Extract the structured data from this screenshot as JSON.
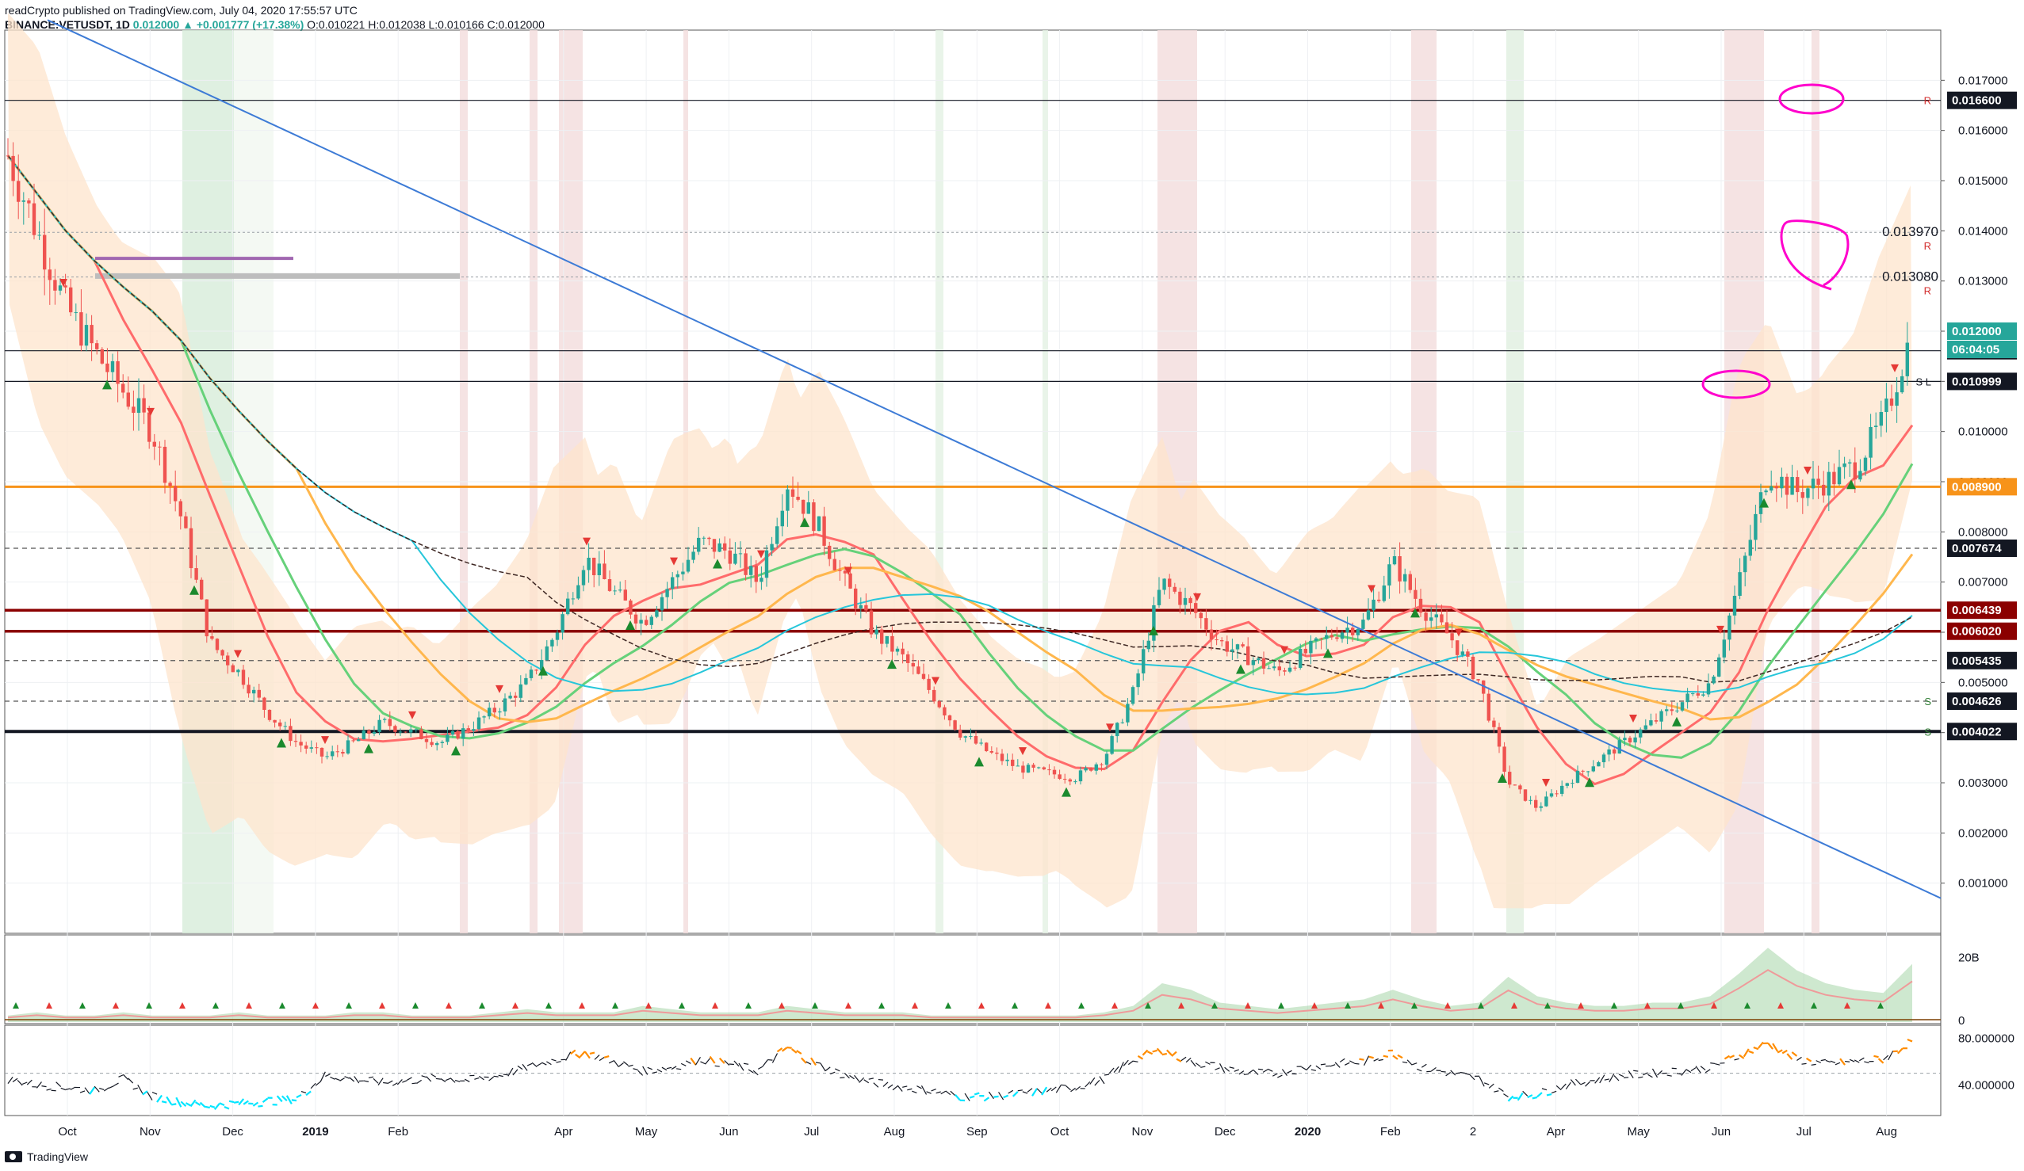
{
  "header": {
    "line1": "readCrypto published on TradingView.com, July 04, 2020 17:55:57 UTC",
    "symbol": "BINANCE:VETUSDT, 1D",
    "change": "0.012000 ▲ +0.001777 (+17.38%)",
    "ohlc": "O:0.010221 H:0.012038 L:0.010166 C:0.012000"
  },
  "footer": {
    "brand": "TradingView"
  },
  "colors": {
    "up_candle": "#26a69a",
    "down_candle": "#ef5350",
    "trendline": "#3d7bd6",
    "orange_line": "#f7931a",
    "dark_red_line": "#8b0000",
    "price_tag": "#26a69a",
    "annotation": "#ff00cc",
    "rsi_overbought": "#ff8c00",
    "rsi_oversold": "#00e5ff"
  },
  "chart_data": [
    {
      "type": "line",
      "title": "",
      "ylim": [
        0.0,
        0.018
      ],
      "y_ticks": [
        "0.017000",
        "0.016000",
        "0.015000",
        "0.014000",
        "0.013000",
        "0.012000",
        "0.011000",
        "0.010000",
        "0.009000",
        "0.008000",
        "0.007000",
        "0.006000",
        "0.005000",
        "0.004000",
        "0.003000",
        "0.002000",
        "0.001000"
      ],
      "y_tick_values": [
        0.017,
        0.016,
        0.015,
        0.014,
        0.013,
        0.012,
        0.011,
        0.01,
        0.009,
        0.008,
        0.007,
        0.006,
        0.005,
        0.004,
        0.003,
        0.002,
        0.001
      ],
      "x_ticks": [
        "Oct",
        "Nov",
        "Dec",
        "2019",
        "Feb",
        "Apr",
        "May",
        "Jun",
        "Jul",
        "Aug",
        "Sep",
        "Oct",
        "Nov",
        "Dec",
        "2020",
        "Feb",
        "2",
        "Apr",
        "May",
        "Jun",
        "Jul",
        "Aug"
      ],
      "x_tick_index": [
        0,
        1,
        2,
        3,
        4,
        6,
        7,
        8,
        9,
        10,
        11,
        12,
        13,
        14,
        15,
        16,
        17,
        18,
        19,
        20,
        21,
        22
      ],
      "x_bold": [
        "2019",
        "2020"
      ],
      "series": [
        {
          "price_path": [
            0.0155,
            0.014,
            0.0125,
            0.0116,
            0.0108,
            0.01,
            0.0083,
            0.0058,
            0.0052,
            0.0044,
            0.0038,
            0.0035,
            0.0038,
            0.0042,
            0.004,
            0.0038,
            0.0041,
            0.0045,
            0.005,
            0.006,
            0.0075,
            0.0068,
            0.0062,
            0.007,
            0.0078,
            0.0076,
            0.007,
            0.009,
            0.0082,
            0.007,
            0.006,
            0.0055,
            0.0048,
            0.004,
            0.0036,
            0.0033,
            0.0032,
            0.0031,
            0.0035,
            0.0048,
            0.007,
            0.0065,
            0.0058,
            0.0055,
            0.0052,
            0.0056,
            0.006,
            0.0062,
            0.0074,
            0.0065,
            0.0059,
            0.005,
            0.003,
            0.0025,
            0.003,
            0.0034,
            0.0038,
            0.0042,
            0.0046,
            0.005,
            0.007,
            0.0092,
            0.0088,
            0.009,
            0.0093,
            0.0102,
            0.012
          ]
        }
      ],
      "horizontal_levels": [
        {
          "value": 0.0166,
          "label": "0.016600",
          "marker": "R",
          "style": "solid-black"
        },
        {
          "value": 0.01397,
          "label": "0.013970",
          "marker": "R",
          "style": "dotted"
        },
        {
          "value": 0.01308,
          "label": "0.013080",
          "marker": "R",
          "style": "dotted"
        },
        {
          "value": 0.01161,
          "label": "0.011610",
          "marker": "",
          "style": "solid-black"
        },
        {
          "value": 0.010999,
          "label": "0.010999",
          "marker": "S L",
          "style": "solid-black"
        },
        {
          "value": 0.0089,
          "label": "0.008900",
          "marker": "",
          "style": "orange"
        },
        {
          "value": 0.007674,
          "label": "0.007674",
          "marker": "",
          "style": "dashed"
        },
        {
          "value": 0.006439,
          "label": "0.006439",
          "marker": "",
          "style": "dark-red"
        },
        {
          "value": 0.00602,
          "label": "0.006020",
          "marker": "",
          "style": "dark-red"
        },
        {
          "value": 0.005435,
          "label": "0.005435",
          "marker": "",
          "style": "dashed"
        },
        {
          "value": 0.004626,
          "label": "0.004626",
          "marker": "S",
          "style": "dashed"
        },
        {
          "value": 0.004022,
          "label": "0.004022",
          "marker": "S",
          "style": "thick-black"
        }
      ],
      "last_price": {
        "value": 0.012,
        "label": "0.012000",
        "countdown": "06:04:05"
      }
    },
    {
      "type": "area",
      "name": "volume",
      "y_ticks": [
        "20B",
        "0"
      ],
      "values": [
        0.2,
        0.3,
        0.2,
        0.2,
        0.3,
        0.2,
        0.2,
        0.2,
        0.3,
        0.2,
        0.2,
        0.2,
        0.3,
        0.3,
        0.2,
        0.2,
        0.2,
        0.3,
        0.4,
        0.3,
        0.3,
        0.3,
        0.5,
        0.4,
        0.3,
        0.3,
        0.3,
        0.5,
        0.4,
        0.3,
        0.3,
        0.3,
        0.2,
        0.2,
        0.2,
        0.2,
        0.2,
        0.2,
        0.3,
        0.5,
        1.2,
        1.0,
        0.6,
        0.5,
        0.4,
        0.5,
        0.6,
        0.7,
        1.0,
        0.7,
        0.5,
        0.6,
        1.4,
        0.8,
        0.6,
        0.5,
        0.5,
        0.6,
        0.6,
        0.8,
        1.5,
        2.3,
        1.6,
        1.2,
        1.0,
        0.9,
        1.8
      ]
    },
    {
      "type": "line",
      "name": "rsi",
      "y_ticks": [
        "80.000000",
        "40.000000"
      ],
      "values": [
        45,
        40,
        38,
        35,
        45,
        30,
        25,
        22,
        24,
        26,
        28,
        48,
        45,
        42,
        44,
        46,
        44,
        48,
        55,
        62,
        68,
        60,
        52,
        55,
        62,
        58,
        52,
        72,
        58,
        48,
        42,
        38,
        35,
        30,
        30,
        32,
        35,
        38,
        45,
        62,
        70,
        60,
        55,
        50,
        50,
        55,
        58,
        60,
        68,
        55,
        50,
        45,
        30,
        32,
        40,
        44,
        48,
        50,
        52,
        55,
        65,
        76,
        62,
        58,
        60,
        62,
        78
      ]
    }
  ]
}
